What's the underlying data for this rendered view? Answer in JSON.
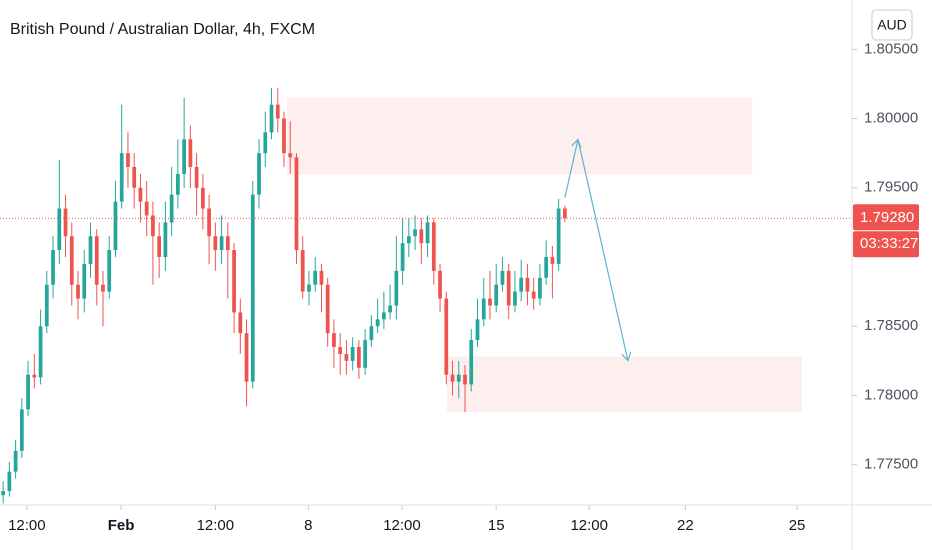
{
  "chart_data": {
    "type": "candlestick",
    "title": "British Pound / Australian Dollar, 4h, FXCM",
    "currency": "AUD",
    "up_color": "#26a69a",
    "down_color": "#ef5350",
    "open": [
      1.7728,
      1.7731,
      1.7745,
      1.776,
      1.779,
      1.7815,
      1.7813,
      1.785,
      1.788,
      1.7905,
      1.7935,
      1.7915,
      1.788,
      1.787,
      1.7895,
      1.7915,
      1.788,
      1.7875,
      1.7905,
      1.794,
      1.7975,
      1.7965,
      1.795,
      1.794,
      1.793,
      1.7915,
      1.79,
      1.7925,
      1.7945,
      1.796,
      1.7985,
      1.7965,
      1.795,
      1.7935,
      1.7915,
      1.7905,
      1.7915,
      1.7905,
      1.786,
      1.7845,
      1.781,
      1.7945,
      1.7975,
      1.799,
      1.801,
      1.8,
      1.7975,
      1.7972,
      1.7905,
      1.7875,
      1.788,
      1.789,
      1.788,
      1.7845,
      1.7835,
      1.783,
      1.7825,
      1.7835,
      1.782,
      1.784,
      1.785,
      1.7855,
      1.786,
      1.7865,
      1.789,
      1.791,
      1.7915,
      1.792,
      1.791,
      1.7925,
      1.789,
      1.787,
      1.7815,
      1.781,
      1.7815,
      1.7808,
      1.784,
      1.7855,
      1.787,
      1.7865,
      1.788,
      1.789,
      1.7865,
      1.7875,
      1.7885,
      1.7875,
      1.787,
      1.7885,
      1.79,
      1.7895,
      1.7935
    ],
    "high": [
      1.7738,
      1.7752,
      1.7768,
      1.7798,
      1.7825,
      1.783,
      1.7862,
      1.789,
      1.7915,
      1.797,
      1.7945,
      1.7925,
      1.789,
      1.7905,
      1.7925,
      1.792,
      1.789,
      1.7915,
      1.7955,
      1.801,
      1.799,
      1.7975,
      1.796,
      1.7955,
      1.794,
      1.7925,
      1.794,
      1.7965,
      1.7985,
      1.8015,
      1.7995,
      1.7975,
      1.796,
      1.7945,
      1.7925,
      1.793,
      1.7925,
      1.791,
      1.787,
      1.7855,
      1.7955,
      1.7985,
      1.8005,
      1.8022,
      1.8022,
      1.8005,
      1.7998,
      1.7975,
      1.7915,
      1.789,
      1.79,
      1.7895,
      1.7885,
      1.7855,
      1.7845,
      1.784,
      1.7842,
      1.784,
      1.7848,
      1.7858,
      1.787,
      1.7875,
      1.788,
      1.7915,
      1.7928,
      1.7928,
      1.793,
      1.7928,
      1.793,
      1.7928,
      1.7895,
      1.7875,
      1.7825,
      1.7825,
      1.7822,
      1.7848,
      1.787,
      1.7885,
      1.789,
      1.7895,
      1.79,
      1.7895,
      1.789,
      1.7898,
      1.7895,
      1.7885,
      1.7895,
      1.7912,
      1.7908,
      1.7942,
      1.7937
    ],
    "low": [
      1.7722,
      1.7727,
      1.774,
      1.7755,
      1.7785,
      1.7805,
      1.7808,
      1.7845,
      1.787,
      1.7895,
      1.79,
      1.7865,
      1.7855,
      1.786,
      1.7885,
      1.7865,
      1.785,
      1.787,
      1.79,
      1.7935,
      1.795,
      1.7935,
      1.7925,
      1.7915,
      1.788,
      1.7885,
      1.789,
      1.7915,
      1.7935,
      1.795,
      1.795,
      1.793,
      1.792,
      1.7895,
      1.789,
      1.7895,
      1.787,
      1.7845,
      1.783,
      1.7792,
      1.7805,
      1.7935,
      1.7965,
      1.7985,
      1.799,
      1.7965,
      1.796,
      1.7895,
      1.787,
      1.7865,
      1.7875,
      1.786,
      1.7835,
      1.782,
      1.7815,
      1.7815,
      1.7818,
      1.7812,
      1.7815,
      1.7835,
      1.7845,
      1.7848,
      1.7855,
      1.7855,
      1.788,
      1.79,
      1.7905,
      1.7895,
      1.79,
      1.788,
      1.786,
      1.7808,
      1.78,
      1.7798,
      1.7788,
      1.7803,
      1.7835,
      1.785,
      1.7855,
      1.786,
      1.7875,
      1.7855,
      1.786,
      1.7868,
      1.7865,
      1.7862,
      1.7865,
      1.788,
      1.787,
      1.789,
      1.7925
    ],
    "close": [
      1.7731,
      1.7745,
      1.776,
      1.779,
      1.7815,
      1.7813,
      1.785,
      1.788,
      1.7905,
      1.7935,
      1.7915,
      1.788,
      1.787,
      1.7895,
      1.7915,
      1.788,
      1.7875,
      1.7905,
      1.794,
      1.7975,
      1.7965,
      1.795,
      1.794,
      1.793,
      1.7915,
      1.79,
      1.7925,
      1.7945,
      1.796,
      1.7985,
      1.7965,
      1.795,
      1.7935,
      1.7915,
      1.7905,
      1.7915,
      1.7905,
      1.786,
      1.7845,
      1.781,
      1.7945,
      1.7975,
      1.799,
      1.801,
      1.8,
      1.7975,
      1.7972,
      1.7905,
      1.7875,
      1.788,
      1.789,
      1.788,
      1.7845,
      1.7835,
      1.783,
      1.7825,
      1.7835,
      1.782,
      1.784,
      1.785,
      1.7855,
      1.786,
      1.7865,
      1.789,
      1.791,
      1.7915,
      1.792,
      1.791,
      1.7925,
      1.789,
      1.787,
      1.7815,
      1.781,
      1.7815,
      1.7808,
      1.784,
      1.7855,
      1.787,
      1.7865,
      1.788,
      1.789,
      1.7865,
      1.7875,
      1.7885,
      1.7875,
      1.787,
      1.7885,
      1.79,
      1.7895,
      1.7935,
      1.7928
    ],
    "xlim": [
      -0.5,
      136
    ],
    "xticks": [
      {
        "value": 3.8,
        "label": "12:00"
      },
      {
        "value": 18.9,
        "label": "Feb"
      },
      {
        "value": 34,
        "label": "12:00"
      },
      {
        "value": 48.9,
        "label": "8"
      },
      {
        "value": 63.9,
        "label": "12:00"
      },
      {
        "value": 79,
        "label": "15"
      },
      {
        "value": 93.9,
        "label": "12:00"
      },
      {
        "value": 109.3,
        "label": "22"
      },
      {
        "value": 127.2,
        "label": "25"
      }
    ],
    "ylim": [
      1.77209,
      1.80856
    ],
    "yticks": [
      {
        "value": 1.775,
        "label": "1.77500"
      },
      {
        "value": 1.78,
        "label": "1.78000"
      },
      {
        "value": 1.785,
        "label": "1.78500"
      },
      {
        "value": 1.795,
        "label": "1.79500"
      },
      {
        "value": 1.8,
        "label": "1.80000"
      },
      {
        "value": 1.805,
        "label": "1.80500"
      }
    ],
    "last_price": {
      "value": 1.7928,
      "label": "1.79280"
    },
    "countdown": "03:33:27",
    "zones": [
      {
        "x": [
          45.5,
          120.0
        ],
        "y": [
          1.79597,
          1.80151
        ],
        "color": "#fbe9e7"
      },
      {
        "x": [
          71.1,
          128.0
        ],
        "y": [
          1.77878,
          1.78281
        ],
        "color": "#fbe9e7"
      }
    ],
    "arrow": {
      "x": [
        90.0,
        92.1,
        100.1
      ],
      "y": [
        1.79428,
        1.79849,
        1.78252
      ],
      "color": "#5fb4d4"
    }
  }
}
